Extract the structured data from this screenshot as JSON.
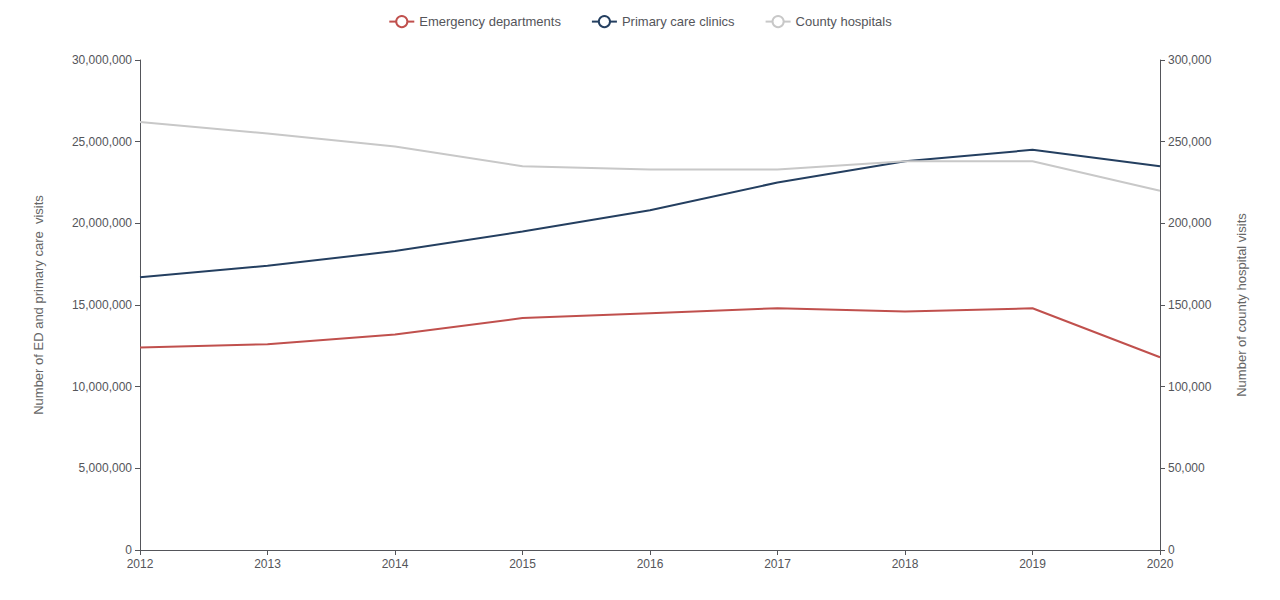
{
  "chart_data": {
    "type": "line",
    "categories": [
      "2012",
      "2013",
      "2014",
      "2015",
      "2016",
      "2017",
      "2018",
      "2019",
      "2020"
    ],
    "series": [
      {
        "name": "Emergency departments",
        "color": "#c0504d",
        "values": [
          12400000,
          12600000,
          13200000,
          14200000,
          14500000,
          14800000,
          14600000,
          14800000,
          11800000
        ]
      },
      {
        "name": "Primary care clinics",
        "color": "#243f60",
        "values": [
          16700000,
          17400000,
          18300000,
          19500000,
          20800000,
          22500000,
          23800000,
          24500000,
          23500000
        ]
      },
      {
        "name": "County hospitals",
        "color": "#c8c8c8",
        "axis": "y2",
        "values": [
          262000,
          255000,
          247000,
          235000,
          233000,
          233000,
          238000,
          238000,
          220000
        ]
      }
    ],
    "ylabel": "Number of ED and primary care  visits",
    "y2label": "Number of county hospital visits",
    "ylim": [
      0,
      30000000
    ],
    "yticks": [
      0,
      {
        "value": 5000000,
        "label": "5,000,000"
      },
      {
        "value": 10000000,
        "label": "10,000,000"
      },
      {
        "value": 15000000,
        "label": "15,000,000"
      },
      {
        "value": 20000000,
        "label": "20,000,000"
      },
      {
        "value": 25000000,
        "label": "25,000,000"
      },
      {
        "value": 30000000,
        "label": "30,000,000"
      }
    ],
    "y2lim": [
      0,
      300000
    ],
    "y2ticks": [
      0,
      {
        "value": 50000,
        "label": "50,000"
      },
      {
        "value": 100000,
        "label": "100,000"
      },
      {
        "value": 150000,
        "label": "150,000"
      },
      {
        "value": 200000,
        "label": "200,000"
      },
      {
        "value": 250000,
        "label": "250,000"
      },
      {
        "value": 300000,
        "label": "300,000"
      }
    ],
    "grid": false,
    "legend": "top"
  }
}
